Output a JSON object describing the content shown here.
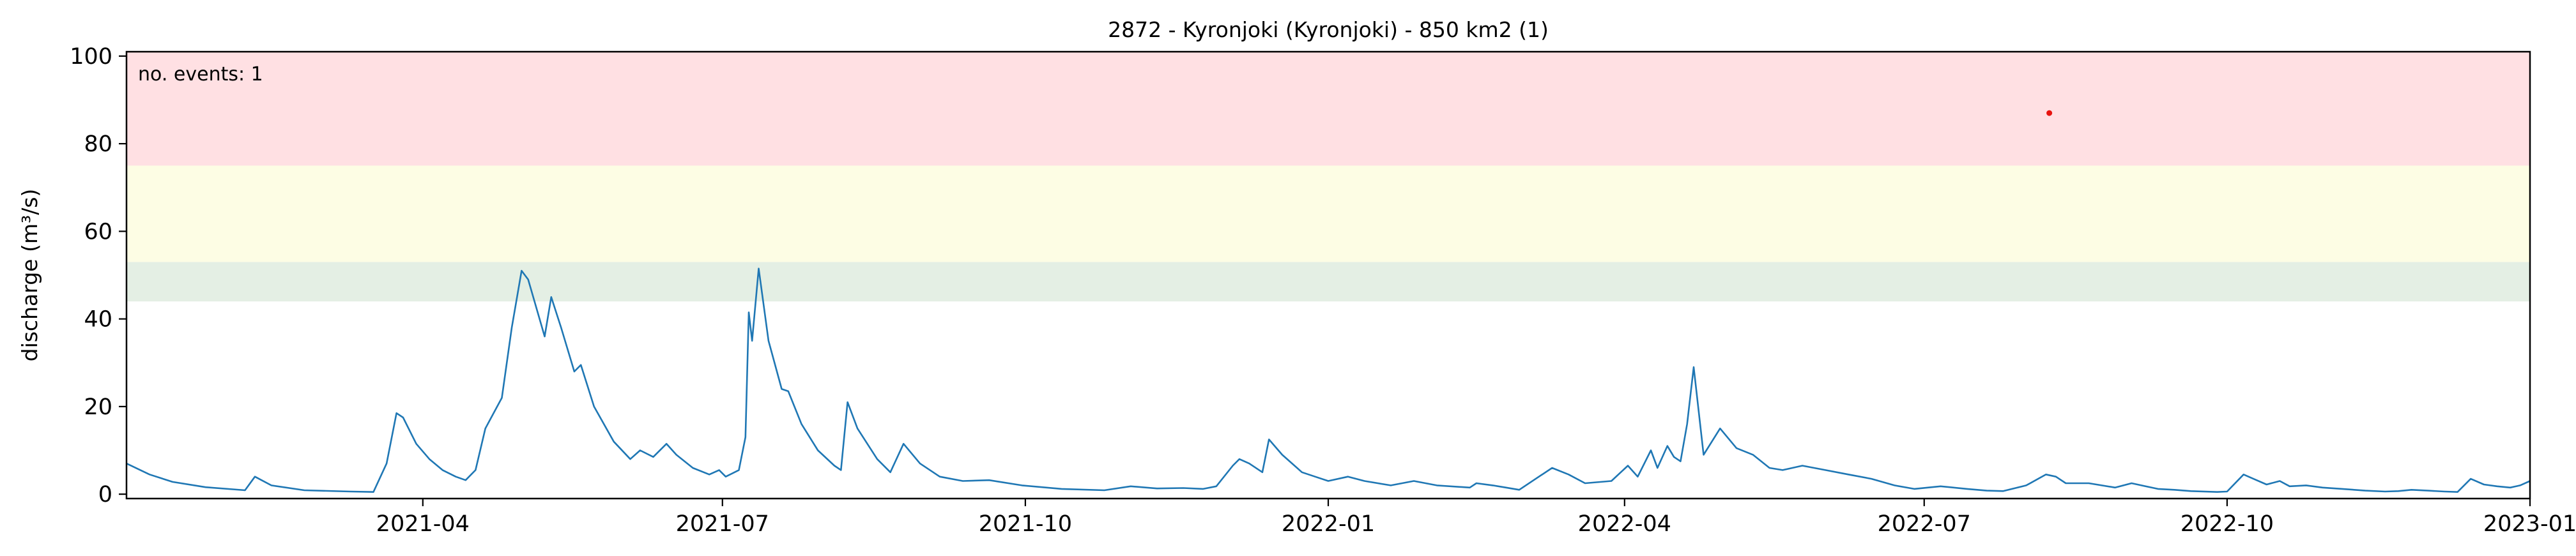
{
  "chart_data": {
    "type": "line",
    "title": "2872 - Kyronjoki (Kyronjoki) - 850 km2 (1)",
    "xlabel": "",
    "ylabel": "discharge (m³/s)",
    "xlim": [
      "2021-01-01",
      "2023-01-01"
    ],
    "ylim": [
      -1,
      101
    ],
    "x_ticks": [
      {
        "date": "2021-04-01",
        "label": "2021-04"
      },
      {
        "date": "2021-07-01",
        "label": "2021-07"
      },
      {
        "date": "2021-10-01",
        "label": "2021-10"
      },
      {
        "date": "2022-01-01",
        "label": "2022-01"
      },
      {
        "date": "2022-04-01",
        "label": "2022-04"
      },
      {
        "date": "2022-07-01",
        "label": "2022-07"
      },
      {
        "date": "2022-10-01",
        "label": "2022-10"
      },
      {
        "date": "2023-01-01",
        "label": "2023-01"
      }
    ],
    "y_ticks": [
      0,
      20,
      40,
      60,
      80,
      100
    ],
    "bands": [
      {
        "from": 44,
        "to": 53,
        "color": "#e4efe4"
      },
      {
        "from": 53,
        "to": 75,
        "color": "#fdfde4"
      },
      {
        "from": 75,
        "to": 101,
        "color": "#ffe0e3"
      }
    ],
    "annotation": {
      "text": "no. events: 1",
      "color": "#e8130f"
    },
    "events": [
      {
        "date": "2022-08-08",
        "value": 87
      }
    ],
    "series": [
      {
        "color": "#1f77b4",
        "points": [
          [
            "2021-01-01",
            7.0
          ],
          [
            "2021-01-08",
            4.5
          ],
          [
            "2021-01-15",
            2.8
          ],
          [
            "2021-01-25",
            1.6
          ],
          [
            "2021-02-06",
            0.9
          ],
          [
            "2021-02-09",
            4.0
          ],
          [
            "2021-02-14",
            2.0
          ],
          [
            "2021-02-24",
            0.9
          ],
          [
            "2021-03-10",
            0.6
          ],
          [
            "2021-03-17",
            0.5
          ],
          [
            "2021-03-21",
            7.0
          ],
          [
            "2021-03-24",
            18.5
          ],
          [
            "2021-03-26",
            17.5
          ],
          [
            "2021-03-30",
            11.5
          ],
          [
            "2021-04-03",
            8.0
          ],
          [
            "2021-04-07",
            5.5
          ],
          [
            "2021-04-11",
            4.0
          ],
          [
            "2021-04-14",
            3.2
          ],
          [
            "2021-04-17",
            5.5
          ],
          [
            "2021-04-20",
            15.0
          ],
          [
            "2021-04-25",
            22.0
          ],
          [
            "2021-04-28",
            38.0
          ],
          [
            "2021-05-01",
            51.0
          ],
          [
            "2021-05-03",
            49.0
          ],
          [
            "2021-05-08",
            36.0
          ],
          [
            "2021-05-10",
            45.0
          ],
          [
            "2021-05-13",
            38.0
          ],
          [
            "2021-05-17",
            28.0
          ],
          [
            "2021-05-19",
            29.5
          ],
          [
            "2021-05-23",
            20.0
          ],
          [
            "2021-05-29",
            12.0
          ],
          [
            "2021-06-03",
            8.0
          ],
          [
            "2021-06-06",
            10.0
          ],
          [
            "2021-06-10",
            8.5
          ],
          [
            "2021-06-14",
            11.5
          ],
          [
            "2021-06-17",
            9.0
          ],
          [
            "2021-06-22",
            6.0
          ],
          [
            "2021-06-27",
            4.5
          ],
          [
            "2021-06-30",
            5.5
          ],
          [
            "2021-07-02",
            4.0
          ],
          [
            "2021-07-06",
            5.5
          ],
          [
            "2021-07-08",
            13.0
          ],
          [
            "2021-07-09",
            41.5
          ],
          [
            "2021-07-10",
            35.0
          ],
          [
            "2021-07-12",
            51.5
          ],
          [
            "2021-07-15",
            35.0
          ],
          [
            "2021-07-19",
            24.0
          ],
          [
            "2021-07-21",
            23.5
          ],
          [
            "2021-07-25",
            16.0
          ],
          [
            "2021-07-30",
            10.0
          ],
          [
            "2021-08-04",
            6.5
          ],
          [
            "2021-08-06",
            5.5
          ],
          [
            "2021-08-08",
            21.0
          ],
          [
            "2021-08-11",
            15.0
          ],
          [
            "2021-08-17",
            8.0
          ],
          [
            "2021-08-21",
            5.0
          ],
          [
            "2021-08-25",
            11.5
          ],
          [
            "2021-08-30",
            7.0
          ],
          [
            "2021-09-05",
            4.0
          ],
          [
            "2021-09-12",
            3.0
          ],
          [
            "2021-09-20",
            3.2
          ],
          [
            "2021-09-30",
            2.0
          ],
          [
            "2021-10-12",
            1.2
          ],
          [
            "2021-10-25",
            0.9
          ],
          [
            "2021-11-02",
            1.8
          ],
          [
            "2021-11-10",
            1.3
          ],
          [
            "2021-11-18",
            1.4
          ],
          [
            "2021-11-24",
            1.2
          ],
          [
            "2021-11-28",
            1.8
          ],
          [
            "2021-12-03",
            6.5
          ],
          [
            "2021-12-05",
            8.0
          ],
          [
            "2021-12-08",
            7.0
          ],
          [
            "2021-12-12",
            5.0
          ],
          [
            "2021-12-14",
            12.5
          ],
          [
            "2021-12-18",
            9.0
          ],
          [
            "2021-12-24",
            5.0
          ],
          [
            "2021-12-28",
            4.0
          ],
          [
            "2022-01-01",
            3.0
          ],
          [
            "2022-01-07",
            4.0
          ],
          [
            "2022-01-12",
            3.0
          ],
          [
            "2022-01-20",
            2.0
          ],
          [
            "2022-01-27",
            3.0
          ],
          [
            "2022-02-03",
            2.0
          ],
          [
            "2022-02-13",
            1.5
          ],
          [
            "2022-02-15",
            2.5
          ],
          [
            "2022-02-20",
            2.0
          ],
          [
            "2022-02-24",
            1.5
          ],
          [
            "2022-02-28",
            1.0
          ],
          [
            "2022-03-05",
            3.5
          ],
          [
            "2022-03-10",
            6.0
          ],
          [
            "2022-03-15",
            4.5
          ],
          [
            "2022-03-20",
            2.5
          ],
          [
            "2022-03-28",
            3.0
          ],
          [
            "2022-04-02",
            6.5
          ],
          [
            "2022-04-05",
            4.0
          ],
          [
            "2022-04-09",
            10.0
          ],
          [
            "2022-04-11",
            6.0
          ],
          [
            "2022-04-14",
            11.0
          ],
          [
            "2022-04-16",
            8.5
          ],
          [
            "2022-04-18",
            7.5
          ],
          [
            "2022-04-20",
            16.0
          ],
          [
            "2022-04-22",
            29.0
          ],
          [
            "2022-04-25",
            9.0
          ],
          [
            "2022-04-30",
            15.0
          ],
          [
            "2022-05-05",
            10.5
          ],
          [
            "2022-05-10",
            9.0
          ],
          [
            "2022-05-15",
            6.0
          ],
          [
            "2022-05-19",
            5.5
          ],
          [
            "2022-05-25",
            6.5
          ],
          [
            "2022-06-01",
            5.5
          ],
          [
            "2022-06-08",
            4.5
          ],
          [
            "2022-06-15",
            3.5
          ],
          [
            "2022-06-22",
            2.0
          ],
          [
            "2022-06-28",
            1.2
          ],
          [
            "2022-07-06",
            1.8
          ],
          [
            "2022-07-14",
            1.2
          ],
          [
            "2022-07-20",
            0.8
          ],
          [
            "2022-07-25",
            0.7
          ],
          [
            "2022-08-01",
            2.0
          ],
          [
            "2022-08-07",
            4.5
          ],
          [
            "2022-08-10",
            4.0
          ],
          [
            "2022-08-13",
            2.5
          ],
          [
            "2022-08-20",
            2.5
          ],
          [
            "2022-08-28",
            1.5
          ],
          [
            "2022-09-02",
            2.5
          ],
          [
            "2022-09-05",
            2.0
          ],
          [
            "2022-09-10",
            1.2
          ],
          [
            "2022-09-15",
            1.0
          ],
          [
            "2022-09-20",
            0.7
          ],
          [
            "2022-09-28",
            0.5
          ],
          [
            "2022-10-01",
            0.6
          ],
          [
            "2022-10-06",
            4.5
          ],
          [
            "2022-10-09",
            3.5
          ],
          [
            "2022-10-13",
            2.2
          ],
          [
            "2022-10-17",
            3.0
          ],
          [
            "2022-10-20",
            1.8
          ],
          [
            "2022-10-25",
            2.0
          ],
          [
            "2022-10-30",
            1.5
          ],
          [
            "2022-11-05",
            1.2
          ],
          [
            "2022-11-12",
            0.8
          ],
          [
            "2022-11-18",
            0.6
          ],
          [
            "2022-11-22",
            0.7
          ],
          [
            "2022-11-26",
            1.0
          ],
          [
            "2022-12-01",
            0.8
          ],
          [
            "2022-12-06",
            0.6
          ],
          [
            "2022-12-10",
            0.5
          ],
          [
            "2022-12-14",
            3.5
          ],
          [
            "2022-12-18",
            2.2
          ],
          [
            "2022-12-22",
            1.8
          ],
          [
            "2022-12-26",
            1.5
          ],
          [
            "2022-12-29",
            2.0
          ],
          [
            "2023-01-01",
            3.0
          ]
        ]
      }
    ]
  }
}
